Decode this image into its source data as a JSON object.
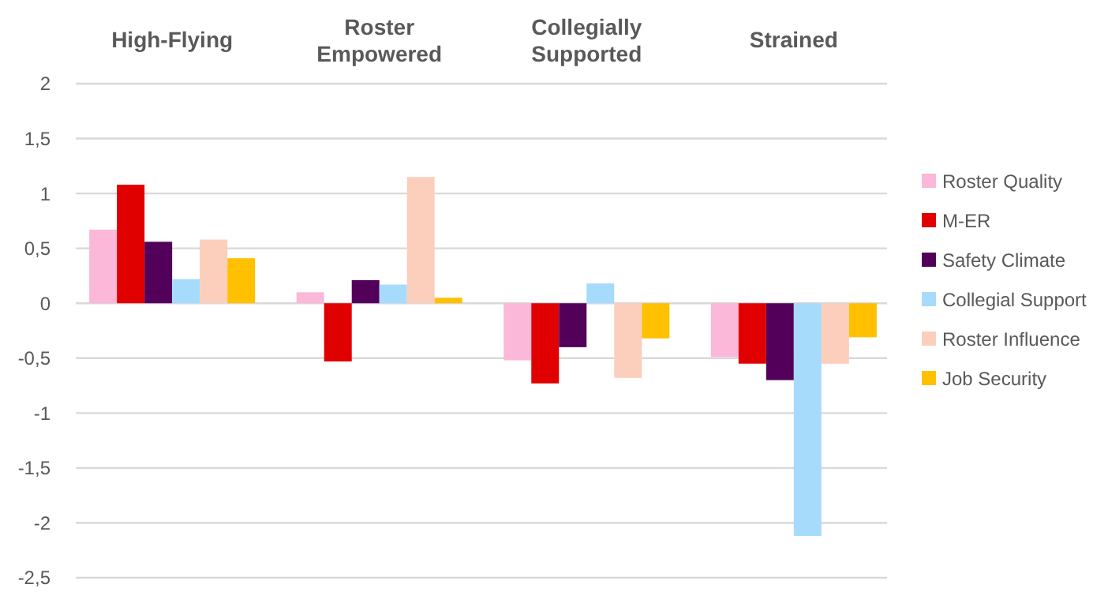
{
  "chart_data": {
    "type": "bar",
    "categories": [
      "High-Flying",
      "Roster Empowered",
      "Collegially Supported",
      "Strained"
    ],
    "series": [
      {
        "name": "Roster Quality",
        "color": "#fbb8d8",
        "values": [
          0.67,
          0.1,
          -0.52,
          -0.49
        ]
      },
      {
        "name": "M-ER",
        "color": "#e00000",
        "values": [
          1.08,
          -0.53,
          -0.73,
          -0.55
        ]
      },
      {
        "name": "Safety Climate",
        "color": "#52005a",
        "values": [
          0.56,
          0.21,
          -0.4,
          -0.7
        ]
      },
      {
        "name": "Collegial Support",
        "color": "#a6dbfc",
        "values": [
          0.22,
          0.17,
          0.18,
          -2.12
        ]
      },
      {
        "name": "Roster Influence",
        "color": "#fbcfbc",
        "values": [
          0.58,
          1.15,
          -0.68,
          -0.55
        ]
      },
      {
        "name": "Job Security",
        "color": "#ffc000",
        "values": [
          0.41,
          0.05,
          -0.32,
          -0.31
        ]
      }
    ],
    "ylim": [
      -2.5,
      2
    ],
    "yticks": [
      {
        "value": 2,
        "label": "2"
      },
      {
        "value": 1.5,
        "label": "1,5"
      },
      {
        "value": 1,
        "label": "1"
      },
      {
        "value": 0.5,
        "label": "0,5"
      },
      {
        "value": 0,
        "label": "0"
      },
      {
        "value": -0.5,
        "label": "-0,5"
      },
      {
        "value": -1,
        "label": "-1"
      },
      {
        "value": -1.5,
        "label": "-1,5"
      },
      {
        "value": -2,
        "label": "-2"
      },
      {
        "value": -2.5,
        "label": "-2,5"
      }
    ],
    "grid": "y",
    "legend": "right"
  }
}
